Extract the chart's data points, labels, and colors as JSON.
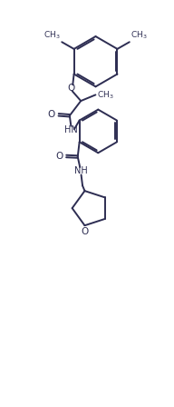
{
  "background_color": "#ffffff",
  "line_color": "#2d2d52",
  "line_width": 1.4,
  "figsize": [
    1.92,
    4.48
  ],
  "dpi": 100,
  "xlim": [
    0,
    10
  ],
  "ylim": [
    0,
    22
  ],
  "font_size": 7.0
}
